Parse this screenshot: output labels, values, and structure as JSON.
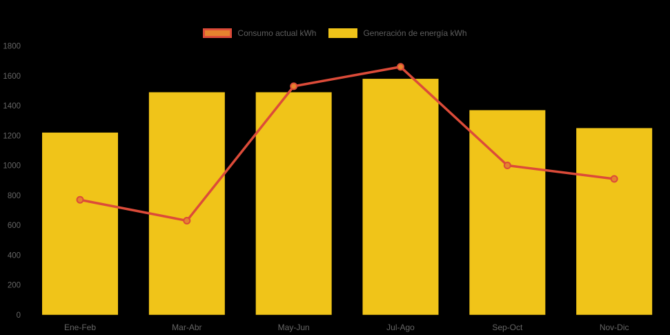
{
  "legend": {
    "position": "top"
  },
  "colors": {
    "background": "#000000",
    "axis_text": "#666666",
    "legend_text": "#5e5e5e",
    "bar_yellow": "#F0C419",
    "line_red": "#DC4B39",
    "marker_orange": "#E5832E"
  },
  "chart_data": {
    "type": "bar",
    "subtype": "bar-line-combo",
    "title": "",
    "xlabel": "",
    "ylabel": "",
    "categories": [
      "Ene-Feb",
      "Mar-Abr",
      "May-Jun",
      "Jul-Ago",
      "Sep-Oct",
      "Nov-Dic"
    ],
    "series": [
      {
        "name": "Consumo actual kWh",
        "type": "line",
        "color": "#DC4B39",
        "marker_fill": "#E5832E",
        "values": [
          770,
          630,
          1530,
          1660,
          1000,
          910
        ]
      },
      {
        "name": "Generación de energía kWh",
        "type": "bar",
        "color": "#F0C419",
        "values": [
          1220,
          1490,
          1490,
          1580,
          1370,
          1250
        ]
      }
    ],
    "yticks": [
      0,
      200,
      400,
      600,
      800,
      1000,
      1200,
      1400,
      1600,
      1800
    ],
    "ylim": [
      0,
      1800
    ],
    "grid": false,
    "legend_position": "top",
    "background": "#000000"
  }
}
